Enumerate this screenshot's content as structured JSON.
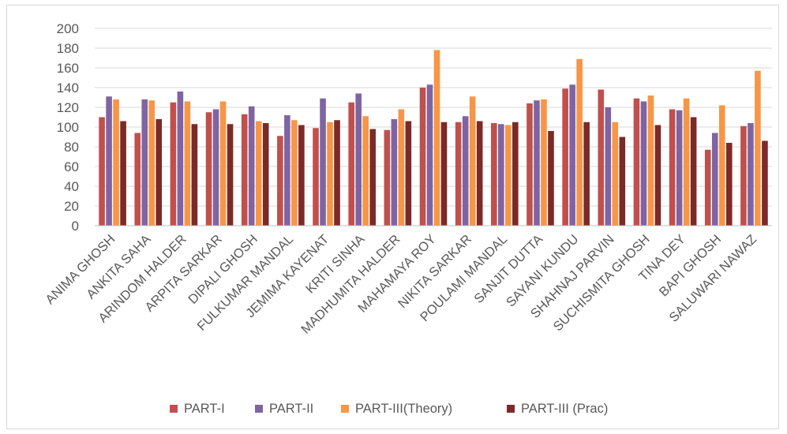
{
  "chart_data": {
    "type": "bar",
    "title": "",
    "xlabel": "",
    "ylabel": "",
    "ylim": [
      0,
      200
    ],
    "yticks": [
      0,
      20,
      40,
      60,
      80,
      100,
      120,
      140,
      160,
      180,
      200
    ],
    "grid": true,
    "legend_position": "bottom",
    "categories": [
      "ANIMA GHOSH",
      "ANKITA SAHA",
      "ARINDOM HALDER",
      "ARPITA SARKAR",
      "DIPALI GHOSH",
      "FULKUMAR MANDAL",
      "JEMIMA KAYENAT",
      "KRITI SINHA",
      "MADHUMITA HALDER",
      "MAHAMAYA ROY",
      "NIKITA SARKAR",
      "POULAMI MANDAL",
      "SANJIT DUTTA",
      "SAYANI KUNDU",
      "SHAHNAJ PARVIN",
      "SUCHISMITA GHOSH",
      "TINA DEY",
      "BAPI GHOSH",
      "SALUWARI NAWAZ"
    ],
    "series": [
      {
        "name": "PART-I",
        "color": "#c0504d",
        "values": [
          110,
          94,
          125,
          115,
          113,
          91,
          99,
          125,
          97,
          140,
          105,
          104,
          124,
          139,
          138,
          129,
          118,
          77,
          101
        ]
      },
      {
        "name": "PART-II",
        "color": "#8064a2",
        "values": [
          131,
          128,
          136,
          118,
          121,
          112,
          129,
          134,
          108,
          143,
          111,
          103,
          127,
          143,
          120,
          126,
          117,
          94,
          104
        ]
      },
      {
        "name": "PART-III(Theory)",
        "color": "#f79646",
        "values": [
          128,
          127,
          126,
          126,
          106,
          107,
          105,
          111,
          118,
          178,
          131,
          102,
          128,
          169,
          105,
          132,
          129,
          122,
          157
        ]
      },
      {
        "name": "PART-III (Prac)",
        "color": "#7b2a27",
        "values": [
          106,
          108,
          103,
          103,
          104,
          102,
          107,
          98,
          106,
          105,
          106,
          105,
          96,
          105,
          90,
          102,
          110,
          84,
          86
        ]
      }
    ]
  },
  "colors": {
    "gridline": "#d9d9d9",
    "axis": "#bfbfbf",
    "text": "#595959"
  }
}
